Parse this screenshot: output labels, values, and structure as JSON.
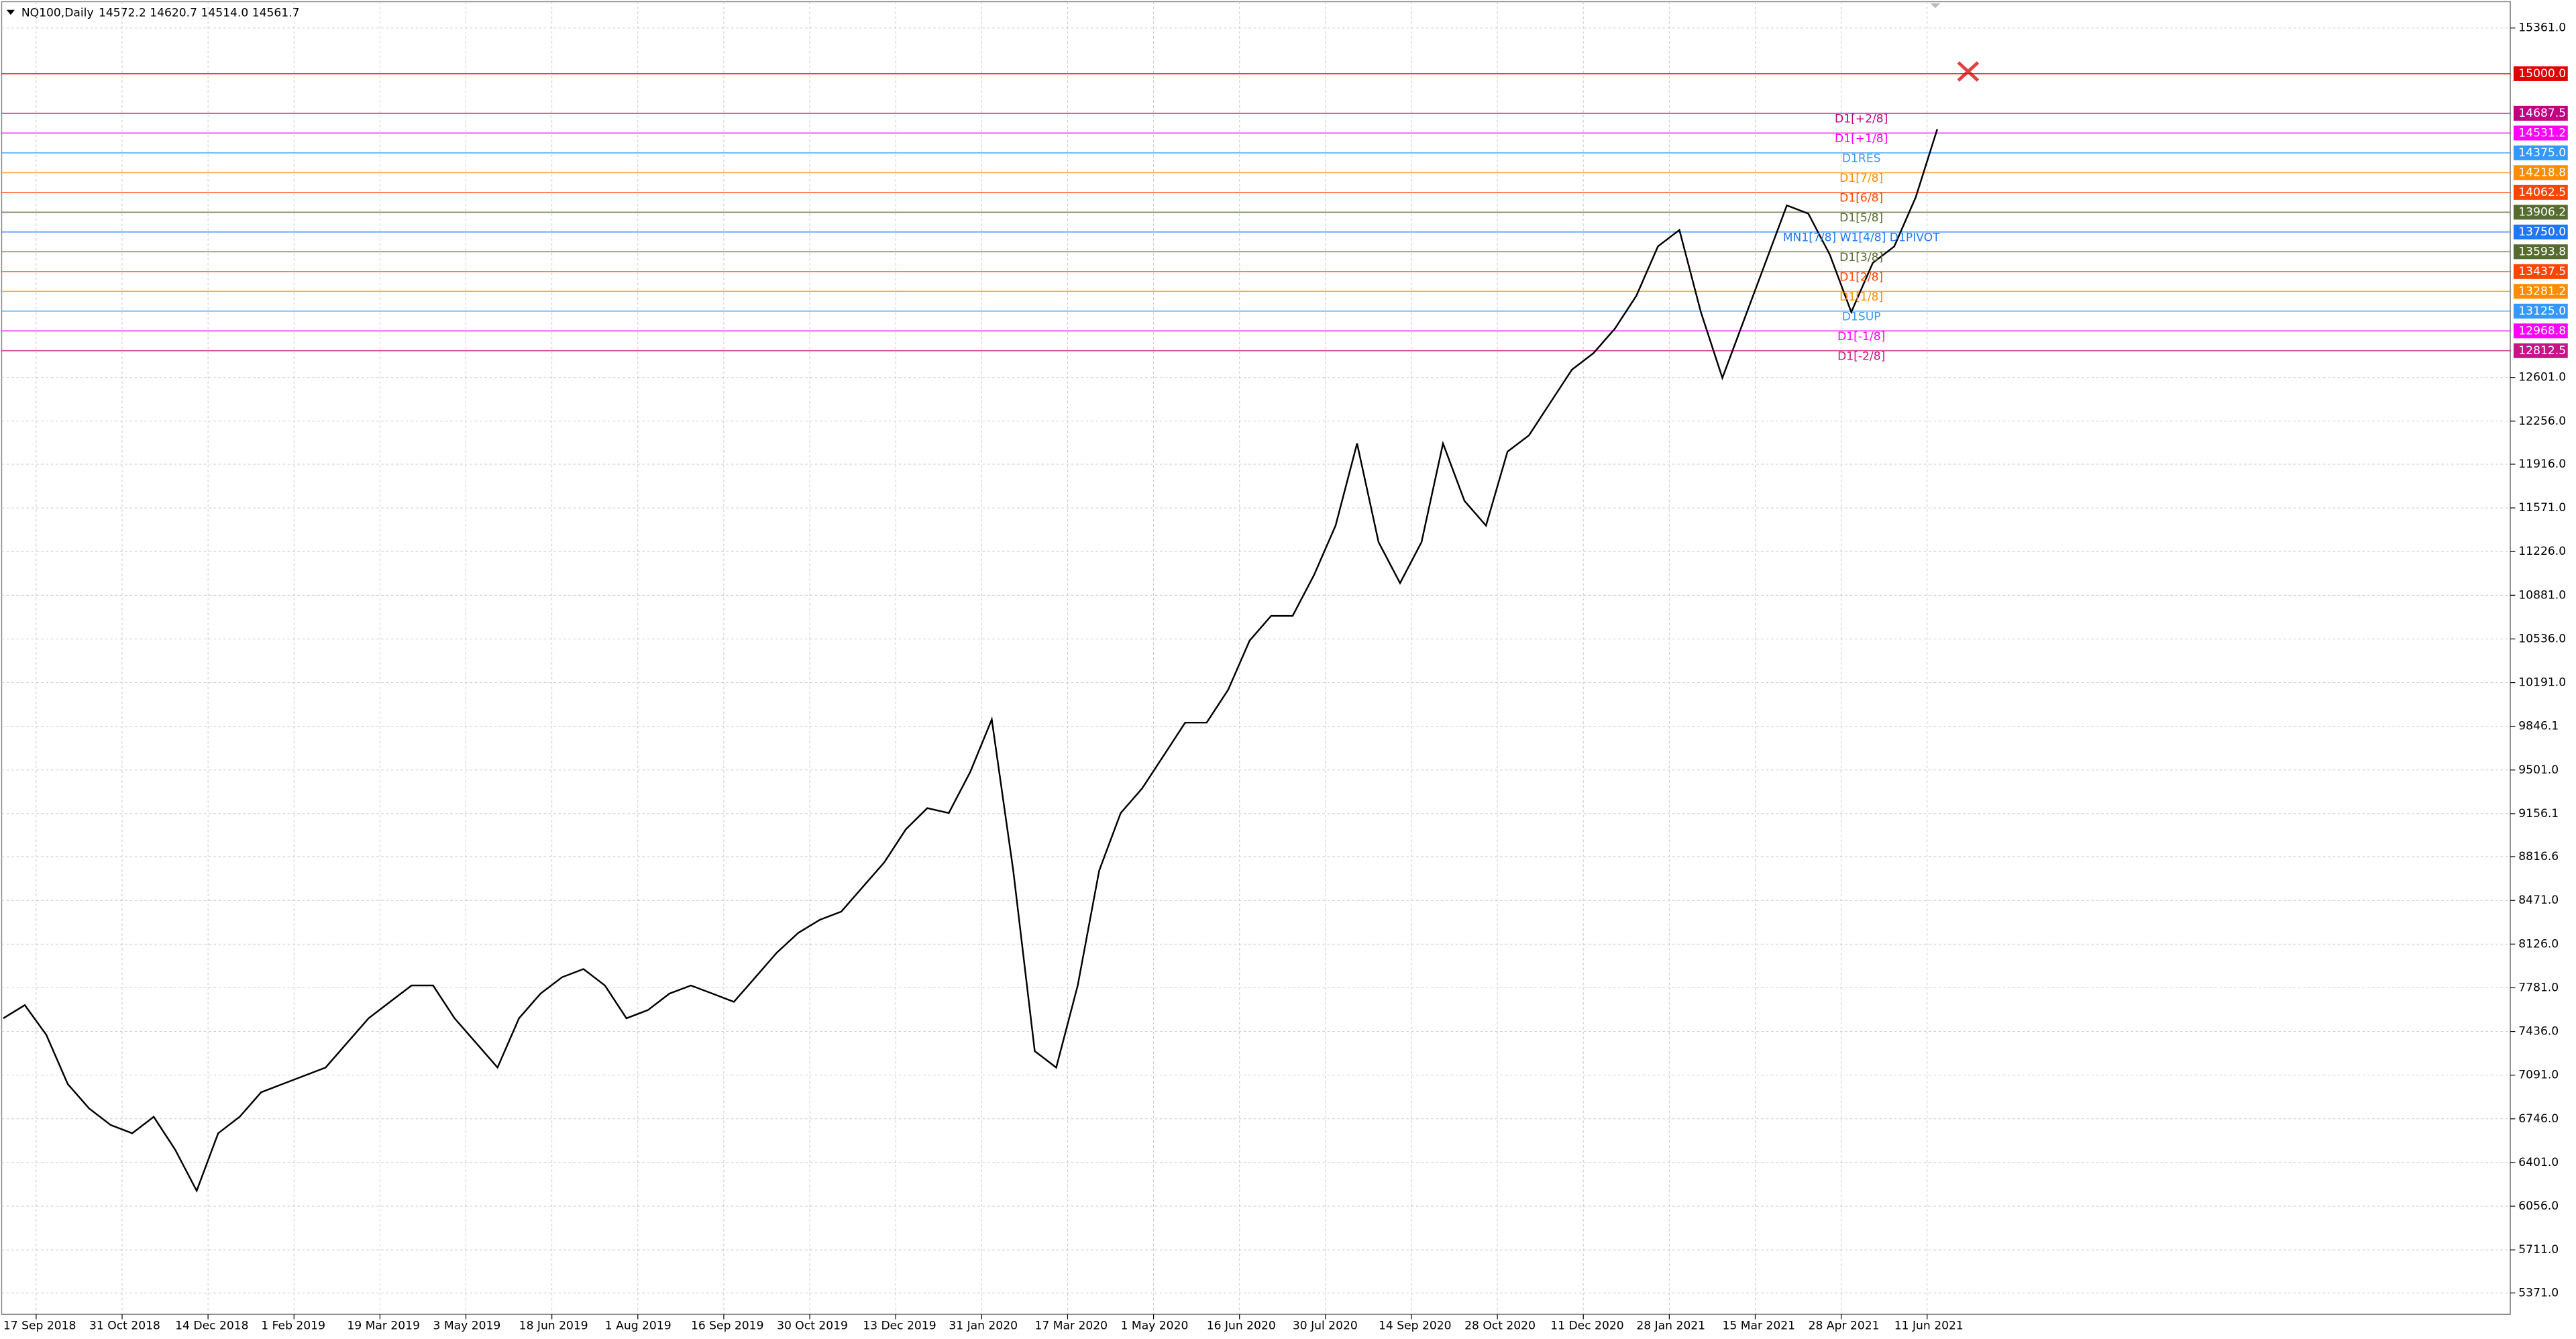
{
  "chart_data": {
    "type": "line",
    "symbol": "NQ100,Daily",
    "quote": "14572.2 14620.7 14514.0 14561.7",
    "color": "#000000",
    "grid": true,
    "ylim": [
      5202,
      15556
    ],
    "yticks": [
      {
        "value": 15361,
        "label": "15361.0"
      },
      {
        "value": 12601,
        "label": "12601.0"
      },
      {
        "value": 12256,
        "label": "12256.0"
      },
      {
        "value": 11916,
        "label": "11916.0"
      },
      {
        "value": 11571,
        "label": "11571.0"
      },
      {
        "value": 11226,
        "label": "11226.0"
      },
      {
        "value": 10881,
        "label": "10881.0"
      },
      {
        "value": 10536,
        "label": "10536.0"
      },
      {
        "value": 10191,
        "label": "10191.0"
      },
      {
        "value": 9846.1,
        "label": "9846.1"
      },
      {
        "value": 9501,
        "label": "9501.0"
      },
      {
        "value": 9156.1,
        "label": "9156.1"
      },
      {
        "value": 8816.6,
        "label": "8816.6"
      },
      {
        "value": 8471,
        "label": "8471.0"
      },
      {
        "value": 8126,
        "label": "8126.0"
      },
      {
        "value": 7781,
        "label": "7781.0"
      },
      {
        "value": 7436,
        "label": "7436.0"
      },
      {
        "value": 7091,
        "label": "7091.0"
      },
      {
        "value": 6746,
        "label": "6746.0"
      },
      {
        "value": 6401,
        "label": "6401.0"
      },
      {
        "value": 6056,
        "label": "6056.0"
      },
      {
        "value": 5711,
        "label": "5711.0"
      },
      {
        "value": 5371,
        "label": "5371.0"
      }
    ],
    "x_labels": [
      "17 Sep 2018",
      "31 Oct 2018",
      "14 Dec 2018",
      "1 Feb 2019",
      "19 Mar 2019",
      "3 May 2019",
      "18 Jun 2019",
      "1 Aug 2019",
      "16 Sep 2019",
      "30 Oct 2019",
      "13 Dec 2019",
      "31 Jan 2020",
      "17 Mar 2020",
      "1 May 2020",
      "16 Jun 2020",
      "30 Jul 2020",
      "14 Sep 2020",
      "28 Oct 2020",
      "11 Dec 2020",
      "28 Jan 2021",
      "15 Mar 2021",
      "28 Apr 2021",
      "11 Jun 2021"
    ],
    "values": [
      7540,
      7644,
      7410,
      7021,
      6827,
      6697,
      6632,
      6762,
      6502,
      6178,
      6632,
      6762,
      6956,
      7021,
      7086,
      7151,
      7346,
      7540,
      7670,
      7799,
      7799,
      7540,
      7346,
      7151,
      7540,
      7735,
      7864,
      7929,
      7799,
      7540,
      7605,
      7735,
      7799,
      7735,
      7670,
      7864,
      8059,
      8215,
      8318,
      8383,
      8578,
      8772,
      9032,
      9200,
      9161,
      9486,
      9900,
      8707,
      7281,
      7151,
      7799,
      8707,
      9161,
      9356,
      9615,
      9875,
      9875,
      10134,
      10523,
      10718,
      10718,
      11042,
      11431,
      12080,
      11301,
      10977,
      11301,
      12080,
      11626,
      11431,
      12015,
      12144,
      12404,
      12663,
      12793,
      12987,
      13247,
      13636,
      13766,
      13117,
      12598,
      13052,
      13506,
      13960,
      13895,
      13571,
      13117,
      13506,
      13636,
      14025,
      14562
    ],
    "levels": [
      {
        "value": 15000,
        "label": "15000.0",
        "color": "#e00000"
      },
      {
        "value": 14687.5,
        "label": "14687.5",
        "color": "#c0007f",
        "name": "D1[+2/8]"
      },
      {
        "value": 14531.2,
        "label": "14531.2",
        "color": "#ff00ff",
        "name": "D1[+1/8]"
      },
      {
        "value": 14375,
        "label": "14375.0",
        "color": "#3399ff",
        "name": "D1RES"
      },
      {
        "value": 14218.8,
        "label": "14218.8",
        "color": "#ff8c00",
        "name": "D1[7/8]"
      },
      {
        "value": 14062.5,
        "label": "14062.5",
        "color": "#ff4500",
        "name": "D1[6/8]"
      },
      {
        "value": 13906.2,
        "label": "13906.2",
        "color": "#556b2f",
        "name": "D1[5/8]"
      },
      {
        "value": 13750,
        "label": "13750.0",
        "color": "#1e78ff",
        "name": "MN1[7/8] W1[4/8] D1PIVOT"
      },
      {
        "value": 13593.8,
        "label": "13593.8",
        "color": "#556b2f",
        "name": "D1[3/8]"
      },
      {
        "value": 13437.5,
        "label": "13437.5",
        "color": "#ff4500",
        "name": "D1[2/8]"
      },
      {
        "value": 13281.2,
        "label": "13281.2",
        "color": "#ff8c00",
        "name": "D1[1/8]"
      },
      {
        "value": 13125,
        "label": "13125.0",
        "color": "#3399ff",
        "name": "D1SUP"
      },
      {
        "value": 12968.8,
        "label": "12968.8",
        "color": "#ff00ff",
        "name": "D1[-1/8]"
      },
      {
        "value": 12812.5,
        "label": "12812.5",
        "color": "#c71585",
        "name": "D1[-2/8]"
      }
    ]
  }
}
